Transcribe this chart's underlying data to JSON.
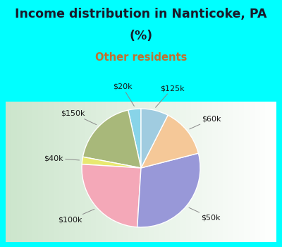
{
  "title_line1": "Income distribution in Nanticoke, PA",
  "title_line2": "(%)",
  "subtitle": "Other residents",
  "labels": [
    "$20k",
    "$150k",
    "$40k",
    "$100k",
    "$50k",
    "$60k",
    "$125k"
  ],
  "sizes": [
    3.5,
    18.5,
    2.0,
    25.0,
    30.0,
    13.5,
    7.5
  ],
  "colors": [
    "#88d4e8",
    "#a8b87a",
    "#e8e870",
    "#f4a8b8",
    "#9898d8",
    "#f5c898",
    "#a0cce0"
  ],
  "bg_cyan": "#00ffff",
  "chart_bg_top": "#c8e8c8",
  "chart_bg_bottom": "#e8f8e8",
  "title_color": "#1a1a2a",
  "subtitle_color": "#c07030",
  "startangle": 90
}
